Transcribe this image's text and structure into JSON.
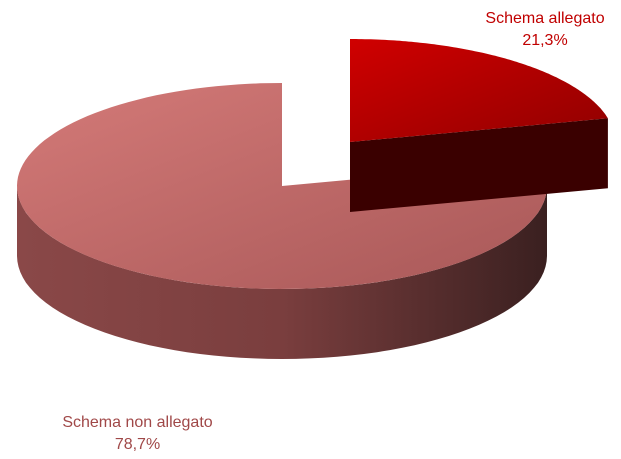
{
  "chart_data": {
    "type": "pie3d",
    "categories": [
      "Schema allegato",
      "Schema non allegato"
    ],
    "values": [
      21.3,
      78.7
    ],
    "value_labels": [
      "21,3%",
      "78,7%"
    ],
    "colors": [
      "#c00000",
      "#c87170"
    ]
  }
}
